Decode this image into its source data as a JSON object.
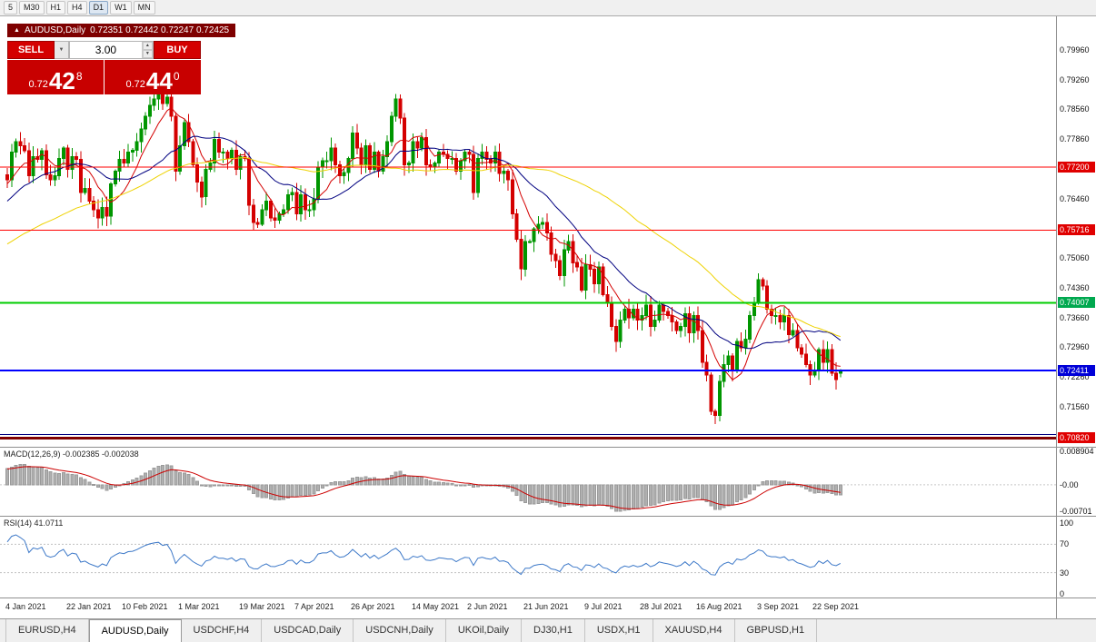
{
  "toolbar": {
    "timeframes": [
      "5",
      "M30",
      "H1",
      "H4",
      "D1",
      "W1",
      "MN"
    ],
    "active": "D1"
  },
  "ohlc_bar": {
    "symbol": "AUDUSD,Daily",
    "values": "0.72351 0.72442 0.72247 0.72425"
  },
  "trade_panel": {
    "sell_label": "SELL",
    "buy_label": "BUY",
    "volume": "3.00",
    "sell_price_small": "0.72",
    "sell_price_big": "42",
    "sell_price_sup": "8",
    "buy_price_small": "0.72",
    "buy_price_big": "44",
    "buy_price_sup": "0"
  },
  "indicators": {
    "macd_label": "MACD(12,26,9) -0.002385 -0.002038",
    "rsi_label": "RSI(14) 41.0711"
  },
  "tabs": {
    "items": [
      {
        "label": "EURUSD,H4",
        "active": false
      },
      {
        "label": "AUDUSD,Daily",
        "active": true
      },
      {
        "label": "USDCHF,H4",
        "active": false
      },
      {
        "label": "USDCAD,Daily",
        "active": false
      },
      {
        "label": "USDCNH,Daily",
        "active": false
      },
      {
        "label": "UKOil,Daily",
        "active": false
      },
      {
        "label": "DJ30,H1",
        "active": false
      },
      {
        "label": "USDX,H1",
        "active": false
      },
      {
        "label": "XAUUSD,H4",
        "active": false
      },
      {
        "label": "GBPUSD,H1",
        "active": false
      }
    ]
  },
  "chart_data": {
    "type": "candlestick",
    "symbol": "AUDUSD",
    "timeframe": "Daily",
    "title": "AUDUSD,Daily",
    "price_axis": {
      "top": 0.80749,
      "bottom": 0.70615
    },
    "price_scale_labels": [
      "0.79960",
      "0.79260",
      "0.78560",
      "0.77860",
      "0.77160",
      "0.76460",
      "0.75760",
      "0.75060",
      "0.74360",
      "0.73660",
      "0.72960",
      "0.72260",
      "0.71560",
      "0.70860"
    ],
    "hlines": [
      {
        "price": 0.772,
        "tag": "0.77200",
        "color": "#ff0000",
        "tag_color": "#e00000",
        "width": 1
      },
      {
        "price": 0.75716,
        "tag": "0.75716",
        "color": "#ff0000",
        "tag_color": "#e00000",
        "width": 1
      },
      {
        "price": 0.74007,
        "tag": "0.74007",
        "color": "#00cc00",
        "tag_color": "#00a84f",
        "width": 2
      },
      {
        "price": 0.72411,
        "tag": "0.72411",
        "color": "#0000ff",
        "tag_color": "#0000d8",
        "width": 2
      },
      {
        "price": 0.709,
        "color": "#000080",
        "width": 1
      },
      {
        "price": 0.7082,
        "tag": "0.70820",
        "color": "#800000",
        "tag_color": "#e00000",
        "width": 3
      }
    ],
    "mas": [
      {
        "period": 8,
        "color": "#d40000",
        "name": "fast-ma"
      },
      {
        "period": 20,
        "color": "#000080",
        "name": "mid-ma"
      },
      {
        "period": 55,
        "color": "#eed202",
        "name": "slow-ma"
      }
    ],
    "colors": {
      "up": "#009600",
      "down": "#d40000",
      "rsi": "#3c78c8",
      "macd_hist": "#b0b0b0",
      "macd_signal": "#cc0000"
    },
    "macd_axis": {
      "top": 0.008904,
      "bottom": -0.00701,
      "labels": [
        {
          "text": "0.008904",
          "value": 0.008904
        },
        {
          "text": "-0.00",
          "value": 0
        },
        {
          "text": "-0.00701",
          "value": -0.00701
        }
      ]
    },
    "rsi_axis": {
      "labels": [
        {
          "text": "100",
          "value": 100
        },
        {
          "text": "70",
          "value": 70
        },
        {
          "text": "30",
          "value": 30
        },
        {
          "text": "0",
          "value": 0
        }
      ]
    },
    "date_labels": [
      {
        "label": "4 Jan 2021",
        "day": 0
      },
      {
        "label": "22 Jan 2021",
        "day": 14
      },
      {
        "label": "10 Feb 2021",
        "day": 27
      },
      {
        "label": "1 Mar 2021",
        "day": 40
      },
      {
        "label": "19 Mar 2021",
        "day": 54
      },
      {
        "label": "7 Apr 2021",
        "day": 67
      },
      {
        "label": "26 Apr 2021",
        "day": 80
      },
      {
        "label": "14 May 2021",
        "day": 94
      },
      {
        "label": "2 Jun 2021",
        "day": 107
      },
      {
        "label": "21 Jun 2021",
        "day": 120
      },
      {
        "label": "9 Jul 2021",
        "day": 134
      },
      {
        "label": "28 Jul 2021",
        "day": 147
      },
      {
        "label": "16 Aug 2021",
        "day": 160
      },
      {
        "label": "3 Sep 2021",
        "day": 174
      },
      {
        "label": "22 Sep 2021",
        "day": 187
      }
    ],
    "last_ohlc": {
      "o": 0.72351,
      "h": 0.72442,
      "l": 0.72247,
      "c": 0.72425
    },
    "pre_closes": [
      0.738,
      0.7392,
      0.7385,
      0.7398,
      0.741,
      0.7402,
      0.7415,
      0.7425,
      0.7418,
      0.743,
      0.744,
      0.7432,
      0.7445,
      0.7455,
      0.7448,
      0.7458,
      0.745,
      0.7462,
      0.747,
      0.7465,
      0.7475,
      0.7468,
      0.7478,
      0.7488,
      0.748,
      0.749,
      0.7482,
      0.7492,
      0.75,
      0.7494,
      0.7504,
      0.7512,
      0.7505,
      0.7515,
      0.7508,
      0.752,
      0.7535,
      0.7528,
      0.7545,
      0.756,
      0.7552,
      0.757,
      0.7585,
      0.7578,
      0.7595,
      0.761,
      0.7602,
      0.7618,
      0.7632,
      0.7625,
      0.764,
      0.7652,
      0.7645,
      0.766,
      0.7672,
      0.7665,
      0.768,
      0.7692,
      0.7685,
      0.7702
    ],
    "closes": [
      0.769,
      0.7755,
      0.778,
      0.777,
      0.7758,
      0.77,
      0.7745,
      0.7738,
      0.7758,
      0.7702,
      0.769,
      0.77,
      0.774,
      0.7765,
      0.7715,
      0.7745,
      0.7738,
      0.766,
      0.767,
      0.764,
      0.762,
      0.76,
      0.7625,
      0.7605,
      0.768,
      0.771,
      0.7738,
      0.773,
      0.7755,
      0.776,
      0.778,
      0.781,
      0.784,
      0.7865,
      0.788,
      0.789,
      0.787,
      0.7885,
      0.784,
      0.771,
      0.777,
      0.7825,
      0.778,
      0.7725,
      0.7685,
      0.765,
      0.7715,
      0.773,
      0.7785,
      0.7755,
      0.7755,
      0.774,
      0.776,
      0.7715,
      0.7745,
      0.774,
      0.763,
      0.759,
      0.7585,
      0.762,
      0.764,
      0.76,
      0.7595,
      0.761,
      0.762,
      0.7655,
      0.766,
      0.761,
      0.7655,
      0.762,
      0.762,
      0.7645,
      0.772,
      0.7735,
      0.7735,
      0.7765,
      0.7725,
      0.77,
      0.7707,
      0.774,
      0.78,
      0.7765,
      0.7725,
      0.777,
      0.7715,
      0.7755,
      0.771,
      0.7745,
      0.778,
      0.784,
      0.788,
      0.7835,
      0.7725,
      0.773,
      0.778,
      0.7765,
      0.779,
      0.7725,
      0.772,
      0.773,
      0.7755,
      0.775,
      0.774,
      0.774,
      0.771,
      0.7735,
      0.7755,
      0.775,
      0.766,
      0.774,
      0.7755,
      0.7738,
      0.773,
      0.7755,
      0.7705,
      0.771,
      0.769,
      0.761,
      0.755,
      0.748,
      0.7545,
      0.7545,
      0.7575,
      0.7585,
      0.759,
      0.7565,
      0.7515,
      0.75,
      0.7465,
      0.7525,
      0.7545,
      0.7495,
      0.7485,
      0.743,
      0.749,
      0.748,
      0.7445,
      0.7485,
      0.742,
      0.74,
      0.7345,
      0.731,
      0.736,
      0.7385,
      0.7365,
      0.7385,
      0.736,
      0.737,
      0.7395,
      0.7345,
      0.736,
      0.7395,
      0.738,
      0.737,
      0.7355,
      0.7335,
      0.7345,
      0.7375,
      0.733,
      0.737,
      0.7335,
      0.726,
      0.723,
      0.7145,
      0.7135,
      0.7215,
      0.7255,
      0.7275,
      0.724,
      0.731,
      0.7295,
      0.7315,
      0.737,
      0.74,
      0.7455,
      0.744,
      0.7385,
      0.737,
      0.737,
      0.7355,
      0.737,
      0.7325,
      0.7335,
      0.7295,
      0.728,
      0.7255,
      0.723,
      0.724,
      0.729,
      0.726,
      0.729,
      0.7235,
      0.722,
      0.72425
    ]
  }
}
